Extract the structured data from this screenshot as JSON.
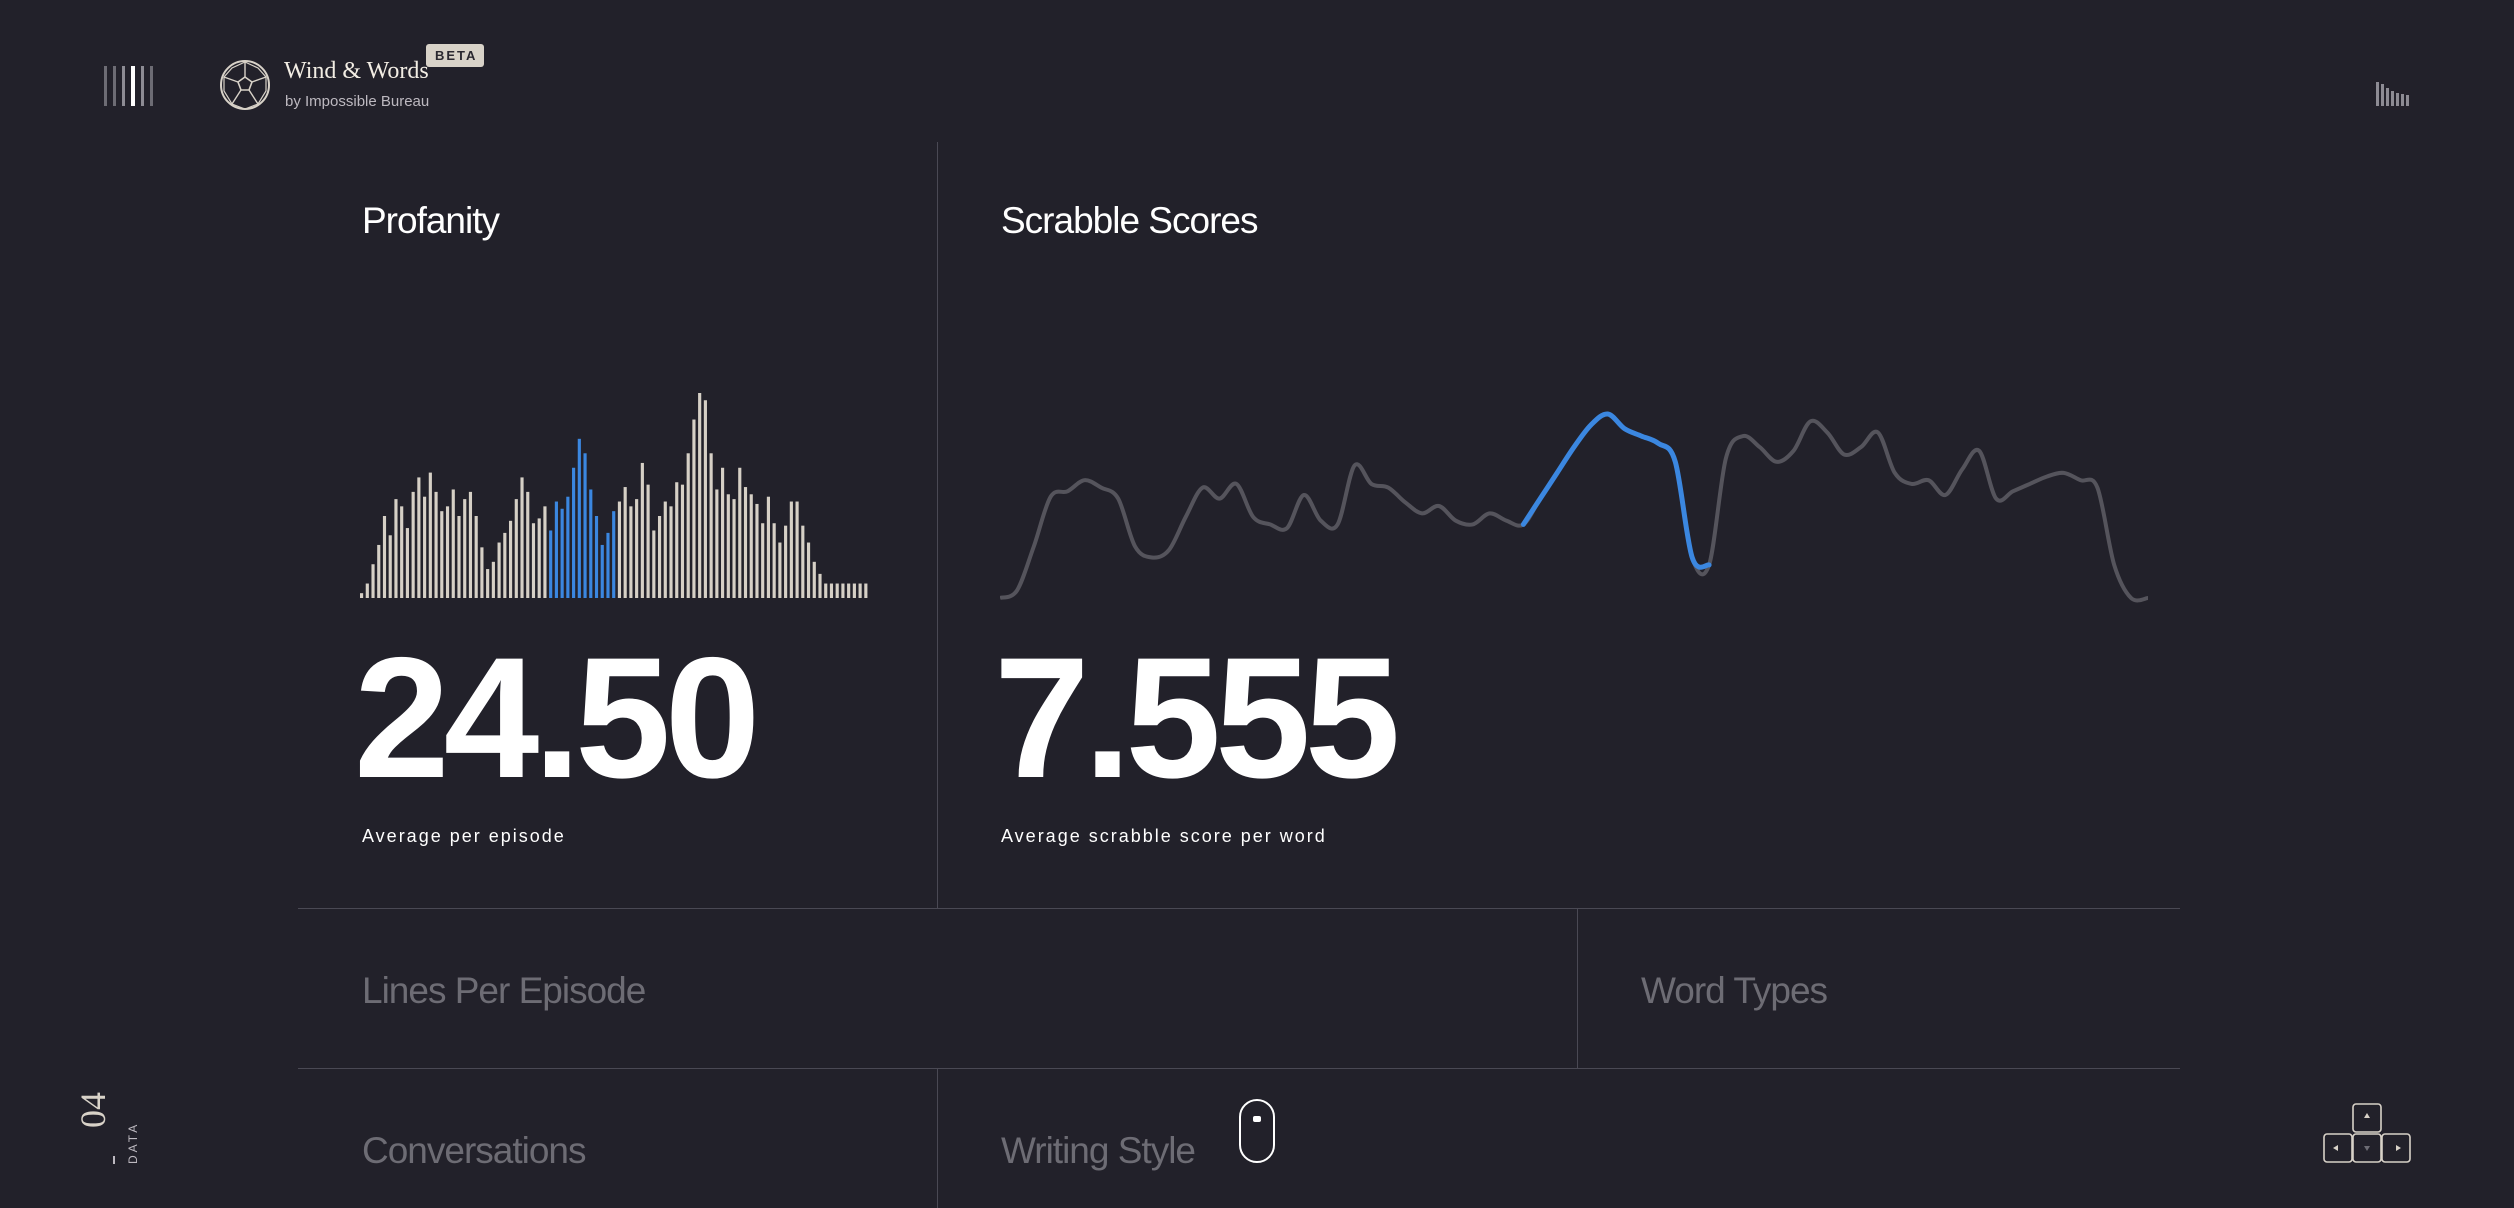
{
  "header": {
    "brand_name": "Wind & Words",
    "brand_sub": "by Impossible Bureau",
    "badge": "BETA",
    "icons": {
      "menu": "menu-bars-icon",
      "logo": "soccer-ball-logo-icon",
      "sound": "sound-bars-icon"
    }
  },
  "profanity": {
    "title": "Profanity",
    "value": "24.50",
    "caption": "Average per episode",
    "chart_data": {
      "type": "bar",
      "values": [
        2,
        6,
        14,
        22,
        34,
        26,
        41,
        38,
        29,
        44,
        50,
        42,
        52,
        44,
        36,
        38,
        45,
        34,
        41,
        44,
        34,
        21,
        12,
        15,
        23,
        27,
        32,
        41,
        50,
        44,
        31,
        33,
        38,
        28,
        40,
        37,
        42,
        54,
        66,
        60,
        45,
        34,
        22,
        27,
        36,
        40,
        46,
        38,
        41,
        56,
        47,
        28,
        34,
        40,
        38,
        48,
        47,
        60,
        74,
        85,
        82,
        60,
        45,
        54,
        43,
        41,
        54,
        46,
        43,
        39,
        31,
        42,
        31,
        23,
        30,
        40,
        40,
        30,
        23,
        15,
        10,
        6,
        6,
        6,
        6,
        6,
        6,
        6,
        6
      ],
      "highlight_range": [
        33,
        44
      ],
      "colors": {
        "bar": "#d6d0c6",
        "highlight": "#3b87e0"
      }
    }
  },
  "scrabble": {
    "title": "Scrabble Scores",
    "value": "7.555",
    "caption": "Average scrabble score per word",
    "chart_data": {
      "type": "line",
      "values": [
        0,
        4,
        28,
        55,
        58,
        64,
        60,
        54,
        28,
        22,
        26,
        44,
        60,
        54,
        62,
        44,
        40,
        38,
        56,
        42,
        40,
        72,
        62,
        60,
        52,
        46,
        50,
        42,
        40,
        46,
        42,
        40,
        54,
        68,
        82,
        94,
        100,
        92,
        88,
        84,
        74,
        22,
        18,
        76,
        88,
        82,
        74,
        80,
        96,
        90,
        78,
        82,
        90,
        68,
        62,
        64,
        56,
        70,
        80,
        54,
        58,
        62,
        66,
        68,
        64,
        60,
        18,
        0,
        0
      ],
      "highlight_range": [
        31,
        42
      ],
      "colors": {
        "line": "#55545c",
        "highlight": "#3b87e0"
      }
    }
  },
  "sections": {
    "lines_per_episode": "Lines Per Episode",
    "word_types": "Word Types",
    "conversations": "Conversations",
    "writing_style": "Writing Style"
  },
  "footer": {
    "page_number": "04",
    "page_label": "DATA",
    "icons": {
      "scroll": "mouse-scroll-icon",
      "keys": "arrow-keys-icon"
    }
  }
}
